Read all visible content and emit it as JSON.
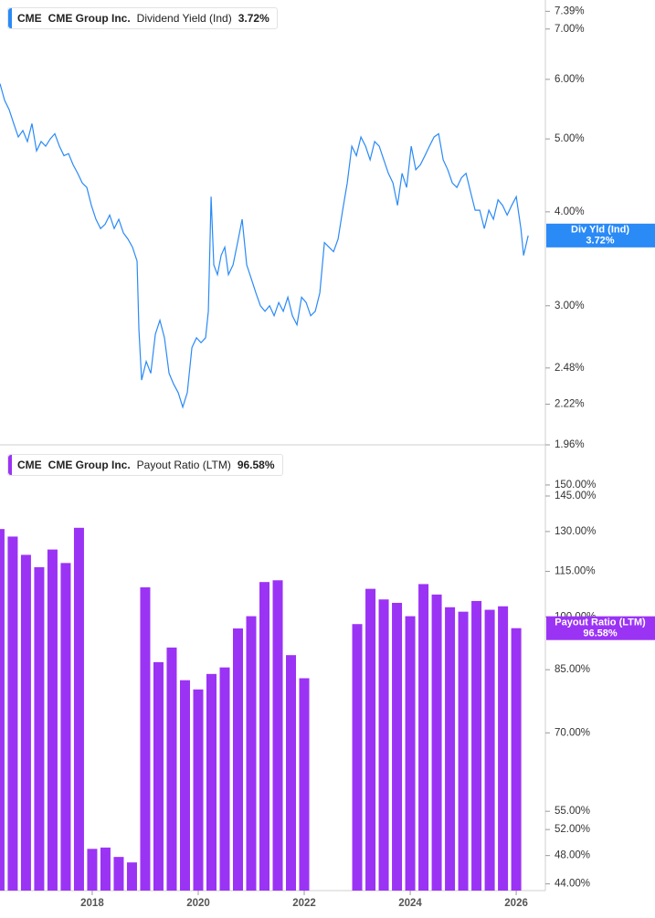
{
  "chart_data": [
    {
      "type": "line",
      "ticker": "CME",
      "company": "CME Group Inc.",
      "series_name": "Dividend Yield (Ind)",
      "tag_label": "Div Yld (Ind)",
      "last_value": 3.72,
      "last_value_label": "3.72%",
      "color": "#2a8af6",
      "log_scale": true,
      "xlim": [
        2016.26,
        2026.55
      ],
      "ylim": [
        1.96,
        7.65
      ],
      "yticks": [
        {
          "value": 7.39,
          "label": "7.39%"
        },
        {
          "value": 7,
          "label": "7.00%"
        },
        {
          "value": 6,
          "label": "6.00%"
        },
        {
          "value": 5,
          "label": "5.00%"
        },
        {
          "value": 4,
          "label": "4.00%"
        },
        {
          "value": 3,
          "label": "3.00%"
        },
        {
          "value": 2.48,
          "label": "2.48%"
        },
        {
          "value": 2.22,
          "label": "2.22%"
        },
        {
          "value": 1.96,
          "label": "1.96%"
        }
      ],
      "x": [
        2016.26,
        2016.346,
        2016.432,
        2016.519,
        2016.605,
        2016.691,
        2016.777,
        2016.863,
        2016.95,
        2017.036,
        2017.122,
        2017.208,
        2017.294,
        2017.381,
        2017.467,
        2017.553,
        2017.639,
        2017.726,
        2017.812,
        2017.898,
        2017.984,
        2018.07,
        2018.157,
        2018.243,
        2018.329,
        2018.415,
        2018.501,
        2018.588,
        2018.674,
        2018.76,
        2018.846,
        2018.881,
        2018.932,
        2019.019,
        2019.105,
        2019.191,
        2019.277,
        2019.363,
        2019.45,
        2019.536,
        2019.622,
        2019.708,
        2019.794,
        2019.881,
        2019.967,
        2020.053,
        2020.139,
        2020.191,
        2020.243,
        2020.294,
        2020.363,
        2020.432,
        2020.501,
        2020.57,
        2020.657,
        2020.743,
        2020.829,
        2020.915,
        2021.001,
        2021.088,
        2021.174,
        2021.26,
        2021.346,
        2021.432,
        2021.519,
        2021.605,
        2021.691,
        2021.777,
        2021.863,
        2021.95,
        2022.036,
        2022.122,
        2022.208,
        2022.294,
        2022.381,
        2022.467,
        2022.553,
        2022.639,
        2022.725,
        2022.812,
        2022.898,
        2022.984,
        2023.07,
        2023.157,
        2023.243,
        2023.329,
        2023.415,
        2023.501,
        2023.588,
        2023.674,
        2023.76,
        2023.846,
        2023.932,
        2024.019,
        2024.105,
        2024.191,
        2024.277,
        2024.363,
        2024.45,
        2024.536,
        2024.622,
        2024.708,
        2024.794,
        2024.881,
        2024.967,
        2025.053,
        2025.139,
        2025.225,
        2025.312,
        2025.398,
        2025.484,
        2025.57,
        2025.657,
        2025.743,
        2025.829,
        2025.915,
        2026.001,
        2026.088,
        2026.139,
        2026.226
      ],
      "values": [
        5.92,
        5.63,
        5.47,
        5.24,
        5.03,
        5.13,
        4.96,
        5.24,
        4.82,
        4.96,
        4.89,
        5.0,
        5.08,
        4.89,
        4.75,
        4.78,
        4.62,
        4.5,
        4.37,
        4.31,
        4.08,
        3.91,
        3.8,
        3.85,
        3.96,
        3.8,
        3.91,
        3.75,
        3.68,
        3.59,
        3.44,
        2.79,
        2.39,
        2.53,
        2.44,
        2.75,
        2.87,
        2.72,
        2.44,
        2.36,
        2.3,
        2.2,
        2.3,
        2.64,
        2.72,
        2.68,
        2.72,
        2.95,
        4.19,
        3.4,
        3.3,
        3.5,
        3.59,
        3.3,
        3.4,
        3.64,
        3.91,
        3.4,
        3.26,
        3.12,
        3.0,
        2.95,
        3.0,
        2.91,
        3.03,
        2.95,
        3.08,
        2.91,
        2.83,
        3.08,
        3.03,
        2.91,
        2.95,
        3.12,
        3.64,
        3.59,
        3.54,
        3.68,
        4.02,
        4.37,
        4.89,
        4.75,
        5.03,
        4.89,
        4.69,
        4.96,
        4.89,
        4.69,
        4.5,
        4.37,
        4.08,
        4.5,
        4.31,
        4.89,
        4.55,
        4.62,
        4.75,
        4.89,
        5.03,
        5.08,
        4.69,
        4.55,
        4.37,
        4.31,
        4.44,
        4.5,
        4.25,
        4.02,
        4.02,
        3.8,
        4.02,
        3.91,
        4.15,
        4.08,
        3.96,
        4.08,
        4.19,
        3.8,
        3.5,
        3.72
      ]
    },
    {
      "type": "bar",
      "ticker": "CME",
      "company": "CME Group Inc.",
      "series_name": "Payout Ratio (LTM)",
      "tag_label": "Payout Ratio (LTM)",
      "last_value": 96.58,
      "last_value_label": "96.58%",
      "color": "#9b33f5",
      "log_scale": true,
      "xlim": [
        2016.26,
        2026.55
      ],
      "ylim": [
        43.1,
        169.7
      ],
      "xticks": [
        2018,
        2020,
        2022,
        2024,
        2026
      ],
      "yticks": [
        {
          "value": 150,
          "label": "150.00%"
        },
        {
          "value": 145,
          "label": "145.00%"
        },
        {
          "value": 130,
          "label": "130.00%"
        },
        {
          "value": 115,
          "label": "115.00%"
        },
        {
          "value": 100,
          "label": "100.00%"
        },
        {
          "value": 85,
          "label": "85.00%"
        },
        {
          "value": 70,
          "label": "70.00%"
        },
        {
          "value": 55,
          "label": "55.00%"
        },
        {
          "value": 52,
          "label": "52.00%"
        },
        {
          "value": 48,
          "label": "48.00%"
        },
        {
          "value": 44,
          "label": "44.00%"
        }
      ],
      "x": [
        2016.25,
        2016.5,
        2016.75,
        2017.0,
        2017.25,
        2017.5,
        2017.75,
        2018.0,
        2018.25,
        2018.5,
        2018.75,
        2019.0,
        2019.25,
        2019.5,
        2019.75,
        2020.0,
        2020.25,
        2020.5,
        2020.75,
        2021.0,
        2021.25,
        2021.5,
        2021.75,
        2022.0,
        2022.25,
        2022.5,
        2022.75,
        2023.0,
        2023.25,
        2023.5,
        2023.75,
        2024.0,
        2024.25,
        2024.5,
        2024.75,
        2025.0,
        2025.25,
        2025.5,
        2025.75,
        2026.0
      ],
      "values": [
        131,
        128,
        121,
        116.5,
        123,
        118,
        131.5,
        49,
        49.2,
        47.8,
        47,
        109.5,
        87,
        91,
        82.3,
        80,
        83.9,
        85.6,
        96.5,
        100.2,
        111.3,
        111.9,
        88.9,
        82.8,
        null,
        null,
        null,
        97.8,
        109,
        105.5,
        104.4,
        100.2,
        110.6,
        107.1,
        103,
        101.6,
        105,
        102.2,
        103.3,
        96.58
      ]
    }
  ]
}
